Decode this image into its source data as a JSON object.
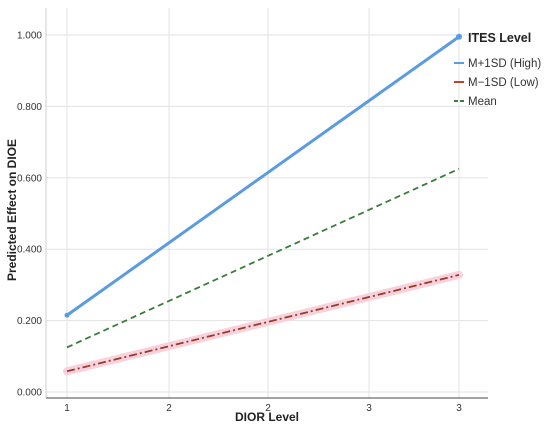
{
  "chart_data": {
    "type": "line",
    "xlabel": "DIOR Level",
    "ylabel": "Predicted  Effect  on  DIOE",
    "x_tick_labels": [
      "1",
      "2",
      "2",
      "3",
      "3"
    ],
    "y_tick_labels": [
      "0.000",
      "0.200",
      "0.400",
      "0.600",
      "0.800",
      "1.000"
    ],
    "ylim": [
      0,
      1.0
    ],
    "grid": true,
    "legend": {
      "title": "ITES Level",
      "placement": "top-right",
      "entries": [
        "M+1SD (High)",
        "M−1SD (Low)",
        "Mean"
      ]
    },
    "series": [
      {
        "name": "M+1SD (High)",
        "color": "#5b9be0",
        "style": "solid",
        "x_index": [
          0,
          4
        ],
        "values": [
          0.215,
          0.995
        ]
      },
      {
        "name": "Mean",
        "color": "#3a7d3a",
        "style": "dashed",
        "x_index": [
          0,
          4
        ],
        "values": [
          0.125,
          0.625
        ]
      },
      {
        "name": "M−1SD (Low)",
        "color": "#9b3a2a",
        "style": "dashdot",
        "x_index": [
          0,
          4
        ],
        "values": [
          0.058,
          0.328
        ]
      }
    ]
  }
}
